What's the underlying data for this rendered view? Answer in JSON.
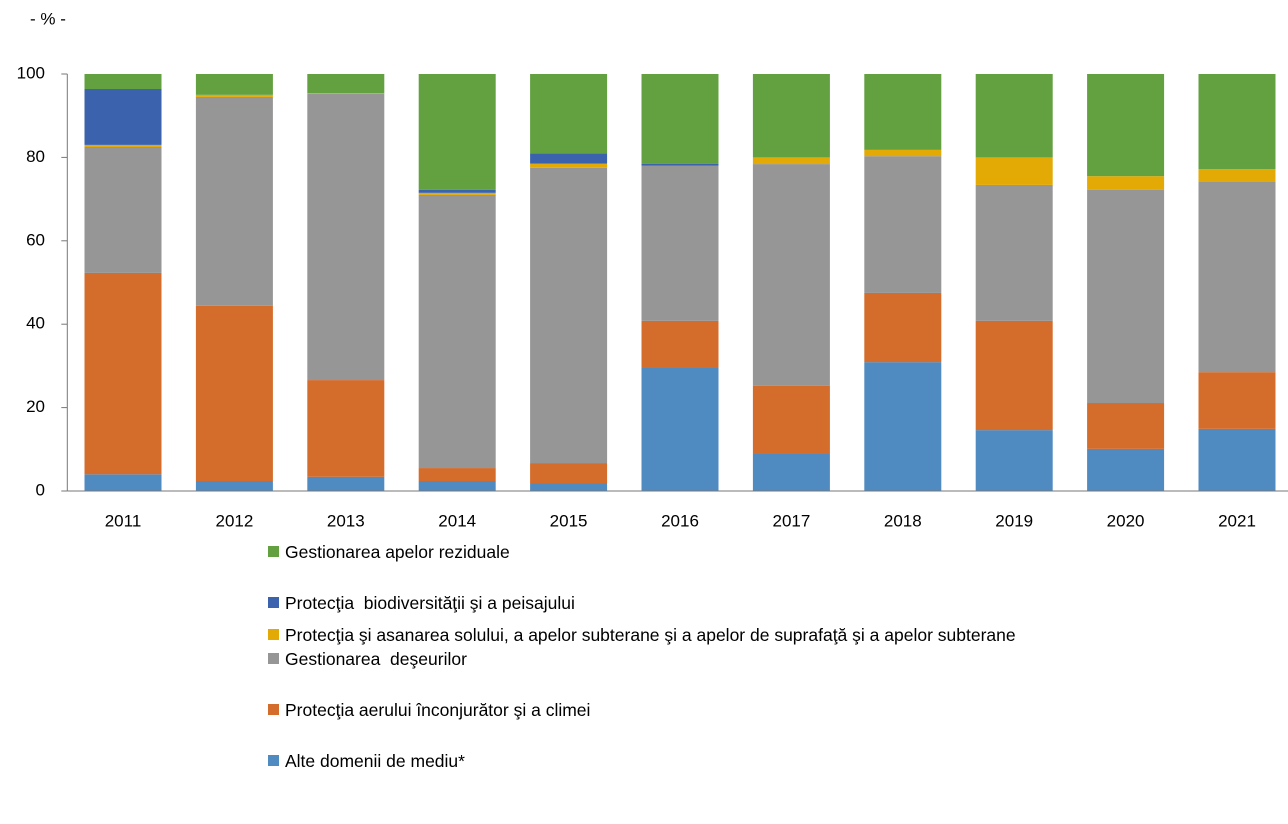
{
  "chart_data": {
    "type": "stacked_bar",
    "y_label": "- % -",
    "categories": [
      "2011",
      "2012",
      "2013",
      "2014",
      "2015",
      "2016",
      "2017",
      "2018",
      "2019",
      "2020",
      "2021"
    ],
    "series": [
      {
        "name": "Alte domenii de mediu*",
        "color": "#4f8bc0",
        "values": [
          4,
          2.4,
          3.4,
          2.4,
          1.8,
          29.5,
          9.1,
          30.9,
          14.6,
          10.1,
          14.9
        ]
      },
      {
        "name": "Protecţia aerului înconjurător şi a climei",
        "color": "#d46c2c",
        "values": [
          48.3,
          42,
          23.2,
          3.1,
          4.9,
          11.3,
          16.1,
          16.6,
          26.2,
          11,
          13.6
        ]
      },
      {
        "name": "Gestionarea  deşeurilor",
        "color": "#969696",
        "values": [
          30.2,
          50.1,
          68.6,
          65.5,
          70.8,
          37.2,
          53.2,
          32.8,
          32.6,
          51.1,
          45.6
        ]
      },
      {
        "name": "Protecţia şi asanarea solului, a apelor subterane şi a apelor de suprafaţă şi a apelor subterane",
        "color": "#e3a905",
        "values": [
          0.5,
          0.5,
          0.2,
          0.5,
          1,
          0,
          1.6,
          1.5,
          6.6,
          3.3,
          3.1
        ]
      },
      {
        "name": "Protecţia  biodiversităţii şi a peisajului",
        "color": "#3a62ad",
        "values": [
          13.4,
          0,
          0,
          0.7,
          2.5,
          0.5,
          0,
          0,
          0,
          0,
          0
        ]
      },
      {
        "name": "Gestionarea apelor reziduale",
        "color": "#62a040",
        "values": [
          3.6,
          5,
          4.6,
          27.8,
          19,
          21.5,
          20,
          18.2,
          20,
          24.5,
          22.8
        ]
      }
    ],
    "ylim": [
      0,
      100
    ],
    "yticks": [
      0,
      20,
      40,
      60,
      80,
      100
    ],
    "grid": false,
    "legend": "bottom"
  }
}
